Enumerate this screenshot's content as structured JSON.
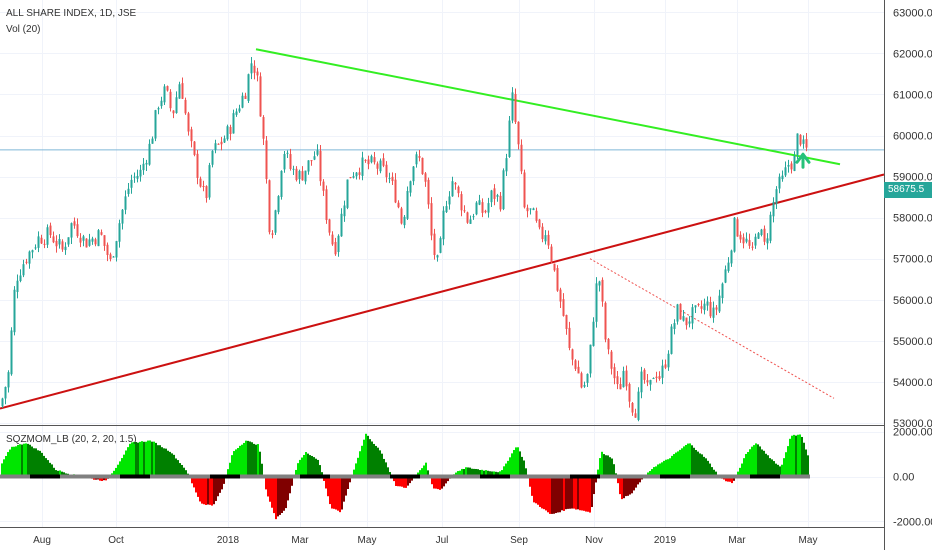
{
  "legend": {
    "symbol": "ALL SHARE INDEX, 1D, JSE",
    "volume": "Vol (20)",
    "oscillator": "SQZMOM_LB (20, 2, 20, 1.5)"
  },
  "last_price_label": "58675.5",
  "colors": {
    "up": "#26a69a",
    "down": "#ef5350",
    "trendline_green": "#33ee22",
    "trendline_red": "#cc1111",
    "trendline_dotted": "#ef5350",
    "price_line": "#7fb6d6",
    "arrow": "#26c17a",
    "last_tag_bg": "#26a69a",
    "hist_bright_green": "#00e600",
    "hist_dark_green": "#008000",
    "hist_bright_red": "#ff0000",
    "hist_dark_red": "#800000",
    "zero_dot_grey": "#808080",
    "zero_dot_black": "#000000"
  },
  "chart_data": [
    {
      "type": "candlestick",
      "title": "ALL SHARE INDEX, 1D, JSE",
      "x_ticks": [
        "Aug",
        "Oct",
        "2018",
        "Mar",
        "May",
        "Jul",
        "Sep",
        "Nov",
        "2019",
        "Mar",
        "May"
      ],
      "y_ticks": [
        "53000.00",
        "54000.00",
        "55000.00",
        "56000.00",
        "57000.00",
        "58000.00",
        "59000.00",
        "60000.00",
        "61000.00",
        "62000.00",
        "63000.00"
      ],
      "ylim": [
        52950,
        63300
      ],
      "last_price": 58675.5,
      "horizontal_level": 59650,
      "grid": true,
      "close_path": [
        [
          0,
          53400
        ],
        [
          8,
          54200
        ],
        [
          15,
          56500
        ],
        [
          25,
          57000
        ],
        [
          38,
          57500
        ],
        [
          50,
          57600
        ],
        [
          62,
          57200
        ],
        [
          72,
          57900
        ],
        [
          85,
          57400
        ],
        [
          100,
          57600
        ],
        [
          110,
          56900
        ],
        [
          120,
          58000
        ],
        [
          130,
          58900
        ],
        [
          140,
          59100
        ],
        [
          150,
          59800
        ],
        [
          158,
          60800
        ],
        [
          165,
          61100
        ],
        [
          172,
          60500
        ],
        [
          180,
          61400
        ],
        [
          188,
          60000
        ],
        [
          195,
          59300
        ],
        [
          205,
          58400
        ],
        [
          212,
          59600
        ],
        [
          220,
          59800
        ],
        [
          228,
          60100
        ],
        [
          236,
          60600
        ],
        [
          245,
          61100
        ],
        [
          252,
          61900
        ],
        [
          258,
          61200
        ],
        [
          264,
          59600
        ],
        [
          270,
          57500
        ],
        [
          276,
          58300
        ],
        [
          283,
          59700
        ],
        [
          290,
          59200
        ],
        [
          300,
          59000
        ],
        [
          308,
          59300
        ],
        [
          316,
          59600
        ],
        [
          323,
          58500
        ],
        [
          328,
          57800
        ],
        [
          334,
          57200
        ],
        [
          340,
          57900
        ],
        [
          348,
          59000
        ],
        [
          356,
          59200
        ],
        [
          364,
          59300
        ],
        [
          372,
          59300
        ],
        [
          380,
          59200
        ],
        [
          388,
          59000
        ],
        [
          396,
          58500
        ],
        [
          402,
          57800
        ],
        [
          408,
          58900
        ],
        [
          414,
          59400
        ],
        [
          420,
          59400
        ],
        [
          426,
          58700
        ],
        [
          432,
          57300
        ],
        [
          438,
          56800
        ],
        [
          444,
          58300
        ],
        [
          452,
          58900
        ],
        [
          460,
          58400
        ],
        [
          468,
          57900
        ],
        [
          476,
          58300
        ],
        [
          484,
          58100
        ],
        [
          492,
          58600
        ],
        [
          500,
          58400
        ],
        [
          506,
          59600
        ],
        [
          512,
          60900
        ],
        [
          518,
          59700
        ],
        [
          524,
          58200
        ],
        [
          532,
          58100
        ],
        [
          540,
          57500
        ],
        [
          546,
          57700
        ],
        [
          552,
          56900
        ],
        [
          558,
          56200
        ],
        [
          564,
          55500
        ],
        [
          570,
          54600
        ],
        [
          576,
          54400
        ],
        [
          582,
          53800
        ],
        [
          588,
          54200
        ],
        [
          594,
          55900
        ],
        [
          598,
          56700
        ],
        [
          602,
          55800
        ],
        [
          606,
          54800
        ],
        [
          612,
          54300
        ],
        [
          618,
          53700
        ],
        [
          624,
          54400
        ],
        [
          630,
          53500
        ],
        [
          636,
          53300
        ],
        [
          642,
          54200
        ],
        [
          648,
          53700
        ],
        [
          654,
          54300
        ],
        [
          660,
          54100
        ],
        [
          666,
          54600
        ],
        [
          672,
          55300
        ],
        [
          678,
          55800
        ],
        [
          684,
          55400
        ],
        [
          690,
          55600
        ],
        [
          698,
          55700
        ],
        [
          706,
          55900
        ],
        [
          714,
          55600
        ],
        [
          722,
          56400
        ],
        [
          728,
          57000
        ],
        [
          734,
          57800
        ],
        [
          740,
          57600
        ],
        [
          746,
          57400
        ],
        [
          752,
          57100
        ],
        [
          758,
          57800
        ],
        [
          764,
          57300
        ],
        [
          770,
          58000
        ],
        [
          776,
          58700
        ],
        [
          782,
          58900
        ],
        [
          788,
          59300
        ],
        [
          794,
          59400
        ],
        [
          798,
          60100
        ],
        [
          803,
          59700
        ],
        [
          808,
          59600
        ]
      ],
      "trendlines": [
        {
          "name": "green",
          "from": [
            256,
            62100
          ],
          "to": [
            840,
            59300
          ]
        },
        {
          "name": "red",
          "from": [
            0,
            53350
          ],
          "to": [
            884,
            59050
          ]
        },
        {
          "name": "dotted",
          "from": [
            590,
            57000
          ],
          "to": [
            834,
            53600
          ]
        }
      ],
      "arrow_at": [
        803,
        59300
      ]
    },
    {
      "type": "histogram",
      "title": "SQZMOM_LB (20, 2, 20, 1.5)",
      "y_ticks": [
        "2000.00",
        "0.00",
        "-2000.00"
      ],
      "ylim": [
        -2250,
        2250
      ],
      "momentum_path": [
        [
          0,
          500
        ],
        [
          10,
          1300
        ],
        [
          25,
          1500
        ],
        [
          40,
          1100
        ],
        [
          55,
          300
        ],
        [
          70,
          100
        ],
        [
          90,
          -100
        ],
        [
          105,
          -200
        ],
        [
          115,
          400
        ],
        [
          130,
          1500
        ],
        [
          150,
          1600
        ],
        [
          170,
          1100
        ],
        [
          185,
          300
        ],
        [
          200,
          -1200
        ],
        [
          212,
          -1300
        ],
        [
          222,
          -500
        ],
        [
          232,
          1100
        ],
        [
          245,
          1600
        ],
        [
          258,
          1400
        ],
        [
          265,
          -600
        ],
        [
          275,
          -1900
        ],
        [
          285,
          -1400
        ],
        [
          297,
          600
        ],
        [
          305,
          1100
        ],
        [
          318,
          700
        ],
        [
          330,
          -1400
        ],
        [
          340,
          -1600
        ],
        [
          352,
          200
        ],
        [
          365,
          1900
        ],
        [
          380,
          1100
        ],
        [
          395,
          -400
        ],
        [
          405,
          -500
        ],
        [
          418,
          200
        ],
        [
          425,
          600
        ],
        [
          432,
          -500
        ],
        [
          440,
          -600
        ],
        [
          452,
          100
        ],
        [
          465,
          400
        ],
        [
          480,
          300
        ],
        [
          500,
          200
        ],
        [
          516,
          1400
        ],
        [
          524,
          600
        ],
        [
          532,
          -1100
        ],
        [
          550,
          -1700
        ],
        [
          570,
          -1400
        ],
        [
          590,
          -1600
        ],
        [
          600,
          1100
        ],
        [
          612,
          800
        ],
        [
          620,
          -1000
        ],
        [
          630,
          -800
        ],
        [
          640,
          -200
        ],
        [
          652,
          400
        ],
        [
          668,
          800
        ],
        [
          688,
          1500
        ],
        [
          705,
          800
        ],
        [
          720,
          -100
        ],
        [
          732,
          -300
        ],
        [
          745,
          1000
        ],
        [
          755,
          1500
        ],
        [
          770,
          800
        ],
        [
          780,
          400
        ],
        [
          790,
          1800
        ],
        [
          800,
          1900
        ],
        [
          808,
          800
        ]
      ],
      "x_ticks": [
        "Aug",
        "Oct",
        "2018",
        "Mar",
        "May",
        "Jul",
        "Sep",
        "Nov",
        "2019",
        "Mar",
        "May"
      ]
    }
  ]
}
